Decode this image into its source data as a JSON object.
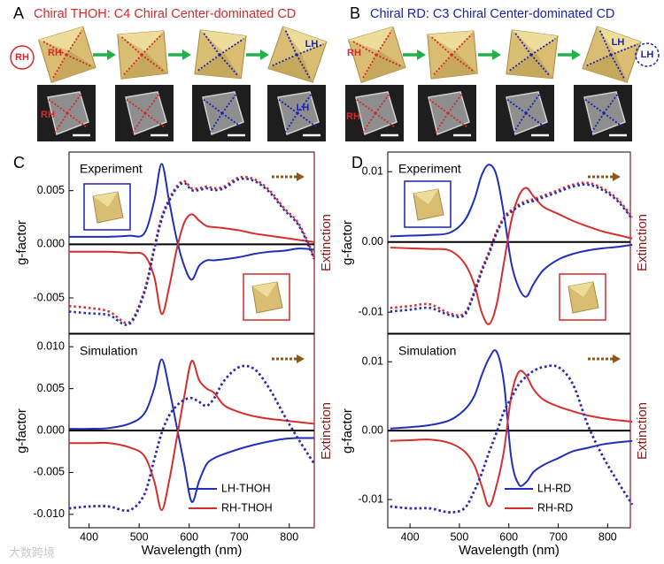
{
  "panels": [
    {
      "letter": "A",
      "title": "Chiral THOH: C4 Chiral Center-dominated CD",
      "labels": [
        "RH",
        "RH",
        "LH",
        "RH",
        "LH"
      ]
    },
    {
      "letter": "B",
      "title": "Chiral RD: C3 Chiral Center-dominated CD",
      "labels": [
        "RH",
        "LH",
        "LH",
        "RH"
      ]
    }
  ],
  "watermark": "大数跨境",
  "chart_data": [
    {
      "type": "line",
      "panel": "C",
      "annotation": "Experiment",
      "ylabel": "g-factor",
      "y2label": "Extinction",
      "x": [
        360,
        400,
        440,
        480,
        510,
        530,
        545,
        560,
        575,
        590,
        605,
        620,
        635,
        650,
        670,
        700,
        730,
        760,
        790,
        820,
        850
      ],
      "xlim": [
        360,
        850
      ],
      "ylim": [
        -0.0083,
        0.0086
      ],
      "yticks": [
        -0.005,
        {
          "value": 0,
          "label": "0.000"
        },
        0.005
      ],
      "y2lim": [
        0,
        1
      ],
      "series": [
        {
          "color": "#1f2fb8",
          "values": [
            0.0007,
            0.0007,
            0.0007,
            0.0008,
            0.001,
            0.004,
            0.0075,
            0.004,
            0.0005,
            -0.002,
            -0.0033,
            -0.002,
            -0.0015,
            -0.0015,
            -0.0014,
            -0.0012,
            -0.0009,
            -0.0007,
            -0.0006,
            -0.0004,
            -0.0005
          ]
        },
        {
          "color": "#d42f2f",
          "values": [
            -0.0007,
            -0.0007,
            -0.0007,
            -0.0008,
            -0.001,
            -0.003,
            -0.0065,
            -0.004,
            -0.0005,
            0.002,
            0.0028,
            0.0022,
            0.0017,
            0.0016,
            0.0015,
            0.0013,
            0.001,
            0.0008,
            0.0006,
            0.0004,
            0.0002
          ]
        },
        {
          "color": "#d42f2f",
          "axis": "y2",
          "dotted": true,
          "values": [
            0.15,
            0.14,
            0.12,
            0.06,
            0.23,
            0.47,
            0.64,
            0.74,
            0.81,
            0.84,
            0.8,
            0.8,
            0.81,
            0.8,
            0.81,
            0.86,
            0.85,
            0.79,
            0.69,
            0.6,
            0.42
          ]
        },
        {
          "color": "#1f2fb8",
          "axis": "y2",
          "dotted": true,
          "values": [
            0.12,
            0.11,
            0.1,
            0.05,
            0.22,
            0.46,
            0.63,
            0.73,
            0.8,
            0.83,
            0.79,
            0.79,
            0.8,
            0.79,
            0.8,
            0.85,
            0.84,
            0.78,
            0.68,
            0.59,
            0.41
          ]
        }
      ]
    },
    {
      "type": "line",
      "annotation": "Simulation",
      "ylabel": "g-factor",
      "y2label": "Extinction",
      "xlabel": "Wavelength (nm)",
      "x": [
        360,
        400,
        440,
        480,
        510,
        530,
        545,
        560,
        575,
        590,
        605,
        620,
        635,
        650,
        670,
        700,
        730,
        760,
        790,
        820,
        850
      ],
      "xlim": [
        360,
        850
      ],
      "xticks": [
        400,
        500,
        600,
        700,
        800
      ],
      "ylim": [
        -0.0116,
        0.0115
      ],
      "yticks": [
        {
          "value": -0.01,
          "label": "-0.010"
        },
        -0.005,
        {
          "value": 0,
          "label": "0.000"
        },
        0.005,
        {
          "value": 0.01,
          "label": "0.010"
        }
      ],
      "y2lim": [
        0,
        1
      ],
      "series": [
        {
          "name": "LH-THOH",
          "color": "#1f2fb8",
          "values": [
            0.0002,
            0.0002,
            0.0003,
            0.0008,
            0.002,
            0.005,
            0.0085,
            0.005,
            0.0005,
            -0.004,
            -0.0085,
            -0.006,
            -0.004,
            -0.0033,
            -0.0028,
            -0.0022,
            -0.0017,
            -0.0013,
            -0.001,
            -0.0009,
            -0.0009
          ]
        },
        {
          "name": "RH-THOH",
          "color": "#d42f2f",
          "values": [
            -0.0015,
            -0.0015,
            -0.0015,
            -0.002,
            -0.003,
            -0.006,
            -0.0095,
            -0.006,
            -0.001,
            0.004,
            0.0083,
            0.006,
            0.005,
            0.0045,
            0.003,
            0.0022,
            0.0017,
            0.0014,
            0.0012,
            0.001,
            0.0008
          ]
        },
        {
          "color": "#d42f2f",
          "axis": "y2",
          "dotted": true,
          "values": [
            0.1,
            0.11,
            0.11,
            0.09,
            0.17,
            0.35,
            0.49,
            0.58,
            0.63,
            0.66,
            0.67,
            0.65,
            0.63,
            0.67,
            0.76,
            0.83,
            0.82,
            0.72,
            0.58,
            0.45,
            0.33
          ]
        },
        {
          "color": "#1f2fb8",
          "axis": "y2",
          "dotted": true,
          "values": [
            0.1,
            0.11,
            0.11,
            0.09,
            0.17,
            0.35,
            0.49,
            0.58,
            0.63,
            0.66,
            0.67,
            0.65,
            0.63,
            0.67,
            0.76,
            0.83,
            0.82,
            0.72,
            0.58,
            0.45,
            0.33
          ]
        }
      ]
    },
    {
      "type": "line",
      "panel": "D",
      "annotation": "Experiment",
      "ylabel": "g-factor",
      "y2label": "Extinction",
      "x": [
        360,
        400,
        440,
        480,
        510,
        530,
        545,
        560,
        575,
        590,
        605,
        620,
        635,
        650,
        670,
        700,
        730,
        760,
        790,
        820,
        850
      ],
      "xlim": [
        355,
        846
      ],
      "ylim": [
        -0.013,
        0.0128
      ],
      "yticks": [
        -0.01,
        {
          "value": 0,
          "label": "0.00"
        },
        0.01
      ],
      "y2lim": [
        0,
        1
      ],
      "series": [
        {
          "color": "#1f2fb8",
          "values": [
            0.0008,
            0.0009,
            0.001,
            0.0013,
            0.003,
            0.006,
            0.0095,
            0.011,
            0.0095,
            0.004,
            -0.003,
            -0.0065,
            -0.0078,
            -0.006,
            -0.004,
            -0.0025,
            -0.0017,
            -0.0012,
            -0.0009,
            -0.0007,
            -0.0004
          ]
        },
        {
          "color": "#d42f2f",
          "values": [
            -0.0008,
            -0.0009,
            -0.001,
            -0.0012,
            -0.003,
            -0.006,
            -0.01,
            -0.0117,
            -0.009,
            -0.003,
            0.003,
            0.0065,
            0.0077,
            0.0065,
            0.005,
            0.004,
            0.003,
            0.0022,
            0.0015,
            0.001,
            0.0005
          ]
        },
        {
          "color": "#d42f2f",
          "axis": "y2",
          "dotted": true,
          "values": [
            0.14,
            0.15,
            0.16,
            0.11,
            0.11,
            0.23,
            0.35,
            0.45,
            0.56,
            0.64,
            0.68,
            0.71,
            0.73,
            0.74,
            0.76,
            0.79,
            0.82,
            0.83,
            0.8,
            0.74,
            0.64
          ]
        },
        {
          "color": "#1f2fb8",
          "axis": "y2",
          "dotted": true,
          "values": [
            0.12,
            0.13,
            0.14,
            0.1,
            0.1,
            0.22,
            0.34,
            0.44,
            0.55,
            0.63,
            0.67,
            0.7,
            0.72,
            0.73,
            0.75,
            0.78,
            0.81,
            0.82,
            0.79,
            0.73,
            0.63
          ]
        }
      ]
    },
    {
      "type": "line",
      "annotation": "Simulation",
      "ylabel": "g-factor",
      "y2label": "Extinction",
      "xlabel": "Wavelength (nm)",
      "x": [
        360,
        400,
        440,
        480,
        510,
        530,
        545,
        560,
        575,
        590,
        605,
        620,
        635,
        650,
        670,
        700,
        730,
        760,
        790,
        820,
        850
      ],
      "xlim": [
        355,
        846
      ],
      "xticks": [
        400,
        500,
        600,
        700,
        800
      ],
      "ylim": [
        -0.0141,
        0.014
      ],
      "yticks": [
        -0.01,
        {
          "value": 0,
          "label": "0.00"
        },
        0.01
      ],
      "y2lim": [
        0,
        1
      ],
      "series": [
        {
          "name": "LH-RD",
          "color": "#1f2fb8",
          "values": [
            0.0003,
            0.0005,
            0.0008,
            0.0015,
            0.003,
            0.005,
            0.008,
            0.0105,
            0.0115,
            0.007,
            -0.004,
            -0.0078,
            -0.0075,
            -0.006,
            -0.005,
            -0.004,
            -0.003,
            -0.0025,
            -0.002,
            -0.0017,
            -0.0015
          ]
        },
        {
          "name": "RH-RD",
          "color": "#d42f2f",
          "values": [
            -0.0015,
            -0.0014,
            -0.0013,
            -0.0018,
            -0.003,
            -0.005,
            -0.008,
            -0.011,
            -0.008,
            -0.003,
            0.005,
            0.0085,
            0.008,
            0.006,
            0.0045,
            0.0035,
            0.0028,
            0.0022,
            0.0018,
            0.0015,
            0.0013
          ]
        },
        {
          "color": "#d42f2f",
          "axis": "y2",
          "dotted": true,
          "values": [
            0.11,
            0.1,
            0.1,
            0.08,
            0.1,
            0.19,
            0.28,
            0.39,
            0.49,
            0.6,
            0.67,
            0.74,
            0.78,
            0.81,
            0.83,
            0.83,
            0.74,
            0.53,
            0.37,
            0.24,
            0.12
          ]
        },
        {
          "color": "#1f2fb8",
          "axis": "y2",
          "dotted": true,
          "values": [
            0.11,
            0.1,
            0.1,
            0.08,
            0.1,
            0.19,
            0.28,
            0.39,
            0.49,
            0.6,
            0.67,
            0.74,
            0.78,
            0.81,
            0.83,
            0.83,
            0.74,
            0.53,
            0.37,
            0.24,
            0.12
          ]
        }
      ]
    }
  ]
}
